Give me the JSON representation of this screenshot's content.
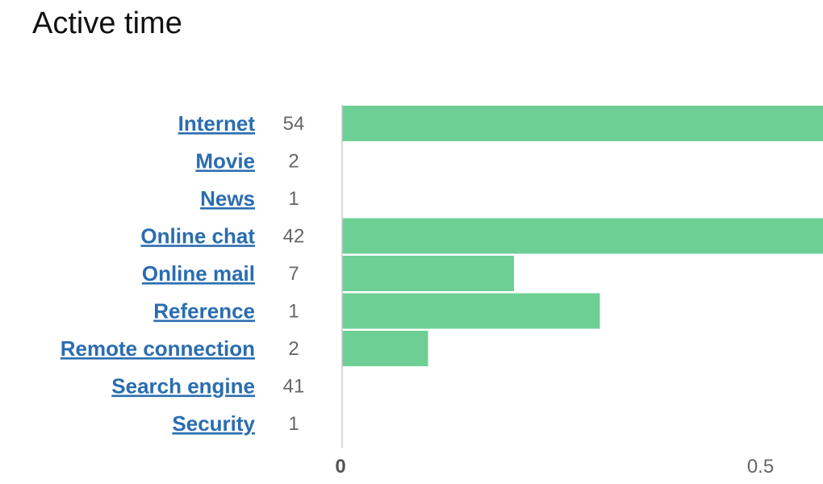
{
  "title": "Active time",
  "chart_data": {
    "type": "bar",
    "orientation": "horizontal",
    "title": "Active time",
    "categories": [
      "Internet",
      "Movie",
      "News",
      "Online chat",
      "Online mail",
      "Reference",
      "Remote connection",
      "Search engine",
      "Security"
    ],
    "counts": [
      "54",
      "2",
      "1",
      "42",
      "7",
      "1",
      "2",
      "41",
      "1"
    ],
    "values": [
      0.6,
      0,
      0,
      0.6,
      0.2,
      0.3,
      0.1,
      0,
      0
    ],
    "xlim": [
      0,
      0.6
    ],
    "x_ticks": [
      "0",
      "0.5"
    ],
    "x_tick_values": [
      0,
      0.5
    ],
    "grid": false,
    "bar_color": "#6dcf94",
    "link_color": "#2a6db0"
  }
}
